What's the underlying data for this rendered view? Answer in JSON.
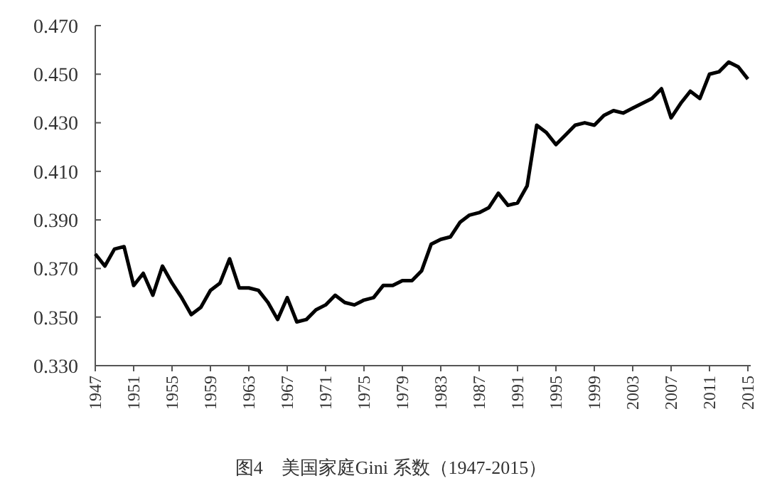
{
  "chart_data": {
    "type": "line",
    "title": "图4　美国家庭Gini 系数（1947-2015）",
    "categories": [
      "1947",
      null,
      null,
      null,
      "1951",
      null,
      null,
      null,
      "1955",
      null,
      null,
      null,
      "1959",
      null,
      null,
      null,
      "1963",
      null,
      null,
      null,
      "1967",
      null,
      null,
      null,
      "1971",
      null,
      null,
      null,
      "1975",
      null,
      null,
      null,
      "1979",
      null,
      null,
      null,
      "1983",
      null,
      null,
      null,
      "1987",
      null,
      null,
      null,
      "1991",
      null,
      null,
      null,
      "1995",
      null,
      null,
      null,
      "1999",
      null,
      null,
      null,
      "2003",
      null,
      null,
      null,
      "2007",
      null,
      null,
      null,
      "2011",
      null,
      null,
      null,
      "2015"
    ],
    "series": [
      {
        "color": "#000000",
        "values": [
          0.376,
          0.371,
          0.378,
          0.379,
          0.363,
          0.368,
          0.359,
          0.371,
          0.364,
          0.358,
          0.351,
          0.354,
          0.361,
          0.364,
          0.374,
          0.362,
          0.362,
          0.361,
          0.356,
          0.349,
          0.358,
          0.348,
          0.349,
          0.353,
          0.355,
          0.359,
          0.356,
          0.355,
          0.357,
          0.358,
          0.363,
          0.363,
          0.365,
          0.365,
          0.369,
          0.38,
          0.382,
          0.383,
          0.389,
          0.392,
          0.393,
          0.395,
          0.401,
          0.396,
          0.397,
          0.404,
          0.429,
          0.426,
          0.421,
          0.425,
          0.429,
          0.43,
          0.429,
          0.433,
          0.435,
          0.434,
          0.436,
          0.438,
          0.44,
          0.444,
          0.432,
          0.438,
          0.443,
          0.44,
          0.45,
          0.451,
          0.455,
          0.453,
          0.448
        ]
      }
    ],
    "ylim": [
      0.33,
      0.47
    ],
    "yticks": [
      {
        "value": 0.33,
        "label": "0.330"
      },
      {
        "value": 0.35,
        "label": "0.350"
      },
      {
        "value": 0.37,
        "label": "0.370"
      },
      {
        "value": 0.39,
        "label": "0.390"
      },
      {
        "value": 0.41,
        "label": "0.410"
      },
      {
        "value": 0.43,
        "label": "0.430"
      },
      {
        "value": 0.45,
        "label": "0.450"
      },
      {
        "value": 0.47,
        "label": "0.470"
      }
    ],
    "grid": false,
    "marker": "none",
    "line_style": "solid"
  }
}
